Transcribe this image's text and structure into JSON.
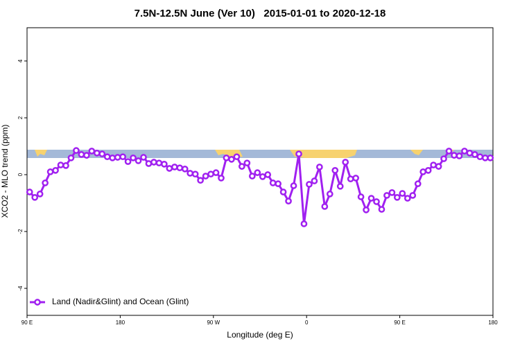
{
  "chart_data": {
    "type": "line",
    "title": "7.5N-12.5N June (Ver 10)   2015-01-01 to 2020-12-18",
    "x_label": "Longitude (deg E)",
    "y_label": "XCO2 - MLO trend (ppm)",
    "x": [
      92.5,
      97.5,
      102.5,
      107.5,
      112.5,
      117.5,
      122.5,
      127.5,
      132.5,
      137.5,
      142.5,
      147.5,
      152.5,
      157.5,
      162.5,
      167.5,
      172.5,
      177.5,
      182.5,
      187.5,
      192.5,
      197.5,
      202.5,
      207.5,
      212.5,
      217.5,
      222.5,
      227.5,
      232.5,
      237.5,
      242.5,
      247.5,
      252.5,
      257.5,
      262.5,
      267.5,
      272.5,
      277.5,
      282.5,
      287.5,
      292.5,
      297.5,
      302.5,
      307.5,
      312.5,
      317.5,
      322.5,
      327.5,
      332.5,
      337.5,
      342.5,
      347.5,
      352.5,
      357.5,
      362.5,
      367.5,
      372.5,
      377.5,
      382.5,
      387.5,
      392.5,
      397.5,
      402.5,
      407.5,
      412.5,
      417.5,
      422.5,
      427.5,
      432.5,
      437.5,
      442.5,
      447.5,
      452.5,
      457.5,
      462.5,
      467.5,
      472.5,
      477.5,
      482.5,
      487.5,
      492.5,
      497.5,
      502.5,
      507.5,
      512.5,
      517.5,
      522.5,
      527.5,
      532.5,
      537.5
    ],
    "series": [
      {
        "name": "Land (Nadir&Glint) and Ocean (Glint)",
        "color": "#a020f0",
        "values": [
          -0.61,
          -0.8,
          -0.68,
          -0.29,
          0.1,
          0.15,
          0.34,
          0.32,
          0.59,
          0.85,
          0.71,
          0.68,
          0.83,
          0.76,
          0.73,
          0.63,
          0.59,
          0.61,
          0.63,
          0.46,
          0.59,
          0.49,
          0.61,
          0.39,
          0.44,
          0.41,
          0.37,
          0.22,
          0.27,
          0.24,
          0.2,
          0.05,
          0.02,
          -0.2,
          -0.05,
          0.02,
          0.07,
          -0.12,
          0.59,
          0.54,
          0.63,
          0.29,
          0.41,
          -0.05,
          0.07,
          -0.07,
          0.0,
          -0.29,
          -0.32,
          -0.61,
          -0.93,
          -0.39,
          0.73,
          -1.73,
          -0.34,
          -0.22,
          0.27,
          -1.12,
          -0.68,
          0.15,
          -0.41,
          0.44,
          -0.15,
          -0.12,
          -0.78,
          -1.24,
          -0.83,
          -0.95,
          -1.22,
          -0.73,
          -0.63,
          -0.8,
          -0.66,
          -0.83,
          -0.73,
          -0.32,
          0.1,
          0.15,
          0.34,
          0.29,
          0.56,
          0.83,
          0.68,
          0.66,
          0.83,
          0.76,
          0.71,
          0.63,
          0.59,
          0.59
        ]
      }
    ],
    "xlim": [
      90,
      540
    ],
    "xticks": [
      {
        "value": 90,
        "label": "90 E"
      },
      180,
      {
        "value": 270,
        "label": "90 W"
      },
      {
        "value": 360,
        "label": "0"
      },
      {
        "value": 450,
        "label": "90 E"
      },
      {
        "value": 540,
        "label": "180"
      }
    ],
    "ylim": [
      -4.95,
      5.17
    ],
    "yticks": [
      -4,
      -2,
      0,
      2,
      4
    ],
    "grid": false,
    "legend": "bottom-left"
  }
}
